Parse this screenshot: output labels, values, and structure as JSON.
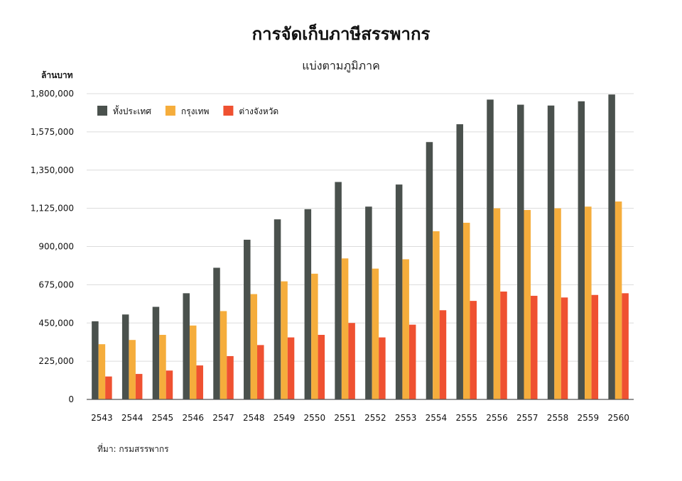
{
  "chart_data": {
    "type": "bar",
    "title": "การจัดเก็บภาษีสรรพากร",
    "subtitle": "แบ่งตามภูมิภาค",
    "ylabel": "ล้านบาท",
    "xlabel": "",
    "ylim": [
      0,
      1800000
    ],
    "yticks": [
      "0",
      "225,000",
      "450,000",
      "675,000",
      "900,000",
      "1,125,000",
      "1,350,000",
      "1,575,000",
      "1,800,000"
    ],
    "grid": true,
    "legend_position": "top-left",
    "categories": [
      "2543",
      "2544",
      "2545",
      "2546",
      "2547",
      "2548",
      "2549",
      "2550",
      "2551",
      "2552",
      "2553",
      "2554",
      "2555",
      "2556",
      "2557",
      "2558",
      "2559",
      "2560"
    ],
    "series": [
      {
        "name": "ทั้งประเทศ",
        "color": "#4a514d",
        "values": [
          460000,
          500000,
          545000,
          625000,
          775000,
          940000,
          1060000,
          1120000,
          1280000,
          1135000,
          1265000,
          1515000,
          1620000,
          1765000,
          1735000,
          1730000,
          1755000,
          1795000
        ]
      },
      {
        "name": "กรุงเทพ",
        "color": "#f5ad3c",
        "values": [
          325000,
          350000,
          380000,
          435000,
          520000,
          620000,
          695000,
          740000,
          830000,
          770000,
          825000,
          990000,
          1040000,
          1125000,
          1115000,
          1125000,
          1135000,
          1165000
        ]
      },
      {
        "name": "ต่างจังหวัด",
        "color": "#ef5131",
        "values": [
          135000,
          150000,
          170000,
          200000,
          255000,
          320000,
          365000,
          380000,
          450000,
          365000,
          440000,
          525000,
          580000,
          635000,
          610000,
          600000,
          615000,
          625000
        ]
      }
    ]
  },
  "source": "ที่มา: กรมสรรพากร"
}
